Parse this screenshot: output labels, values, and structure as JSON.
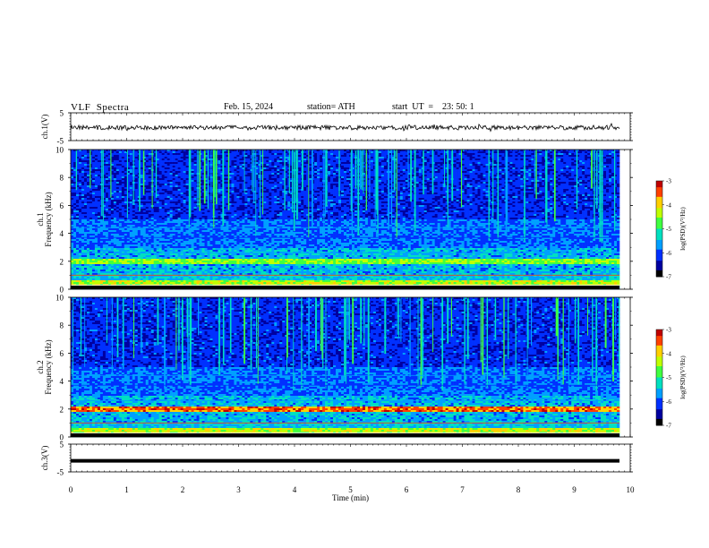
{
  "header": {
    "title": "VLF  Spectra",
    "date": "Feb. 15, 2024",
    "station": "station= ATH",
    "start": "start  UT  =    23: 50: 1"
  },
  "chart_data": [
    {
      "type": "line",
      "title": "",
      "ylabel": "ch.1(V)",
      "ylim": [
        -5,
        5
      ],
      "yticks": [
        "5",
        "-5"
      ],
      "xlim": [
        0,
        10
      ],
      "description_series": [
        {
          "name": "",
          "level": 0
        }
      ]
    },
    {
      "type": "heatmap",
      "ylabel": "ch.1\nFrequency (kHz)",
      "ylim": [
        0,
        10
      ],
      "yticks": [
        "0",
        "2",
        "4",
        "6",
        "8",
        "10"
      ],
      "xlim": [
        0,
        10
      ],
      "colorbar": {
        "label": "log(PSD)(V²/Hz)",
        "range": [
          -7,
          -3
        ],
        "ticks": [
          "-3",
          "-4",
          "-5",
          "-6",
          "-7"
        ]
      }
    },
    {
      "type": "heatmap",
      "ylabel": "ch.2\nFrequency (kHz)",
      "ylim": [
        0,
        10
      ],
      "yticks": [
        "0",
        "2",
        "4",
        "6",
        "8",
        "10"
      ],
      "xlim": [
        0,
        10
      ],
      "colorbar": {
        "label": "log(PSD)(V²/Hz)",
        "range": [
          -7,
          -3
        ],
        "ticks": [
          "-3",
          "-4",
          "-5",
          "-6",
          "-7"
        ]
      }
    },
    {
      "type": "line",
      "ylabel": "ch.3(V)",
      "ylim": [
        -5,
        5
      ],
      "yticks": [
        "5",
        "-5"
      ],
      "xlim": [
        0,
        10
      ],
      "xlabel": "Time  (min)",
      "xticks": [
        "0",
        "1",
        "2",
        "3",
        "4",
        "5",
        "6",
        "7",
        "8",
        "9",
        "10"
      ]
    }
  ],
  "colors": {
    "colormap": [
      "#000000",
      "#0000a0",
      "#0030ff",
      "#00a0ff",
      "#00e0c0",
      "#40ff40",
      "#c0ff00",
      "#ffd000",
      "#ff4000",
      "#c00000",
      "#ffffff"
    ]
  }
}
